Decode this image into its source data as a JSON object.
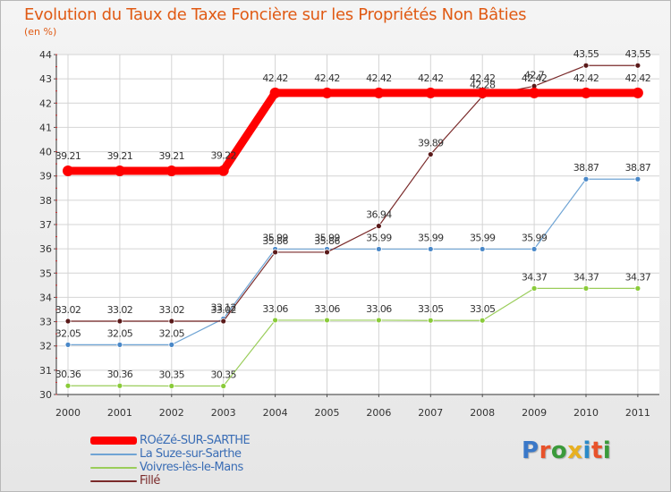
{
  "chart_data": {
    "type": "line",
    "title": "Evolution du Taux de Taxe Foncière sur les Propriétés Non Bâties",
    "ylabel": "(en %)",
    "xlabel": "",
    "categories": [
      "2000",
      "2001",
      "2002",
      "2003",
      "2004",
      "2005",
      "2006",
      "2007",
      "2008",
      "2009",
      "2010",
      "2011"
    ],
    "ylim": [
      30,
      44
    ],
    "yticks": [
      "30",
      "31",
      "32",
      "33",
      "34",
      "35",
      "36",
      "37",
      "38",
      "39",
      "40",
      "41",
      "42",
      "43",
      "44"
    ],
    "grid": true,
    "series": [
      {
        "name": "ROéZé-SUR-SARTHE",
        "color": "#ff0000",
        "values": [
          39.21,
          39.21,
          39.21,
          39.22,
          42.42,
          42.42,
          42.42,
          42.42,
          42.42,
          42.42,
          42.42,
          42.42
        ],
        "labels": [
          "39.21",
          "39.21",
          "39.21",
          "39.22",
          "42.42",
          "42.42",
          "42.42",
          "42.42",
          "42.42",
          "42.42",
          "42.42",
          "42.42"
        ]
      },
      {
        "name": "La Suze-sur-Sarthe",
        "color": "#6fa4d4",
        "values": [
          32.05,
          32.05,
          32.05,
          33.12,
          35.99,
          35.99,
          35.99,
          35.99,
          35.99,
          35.99,
          38.87,
          38.87
        ],
        "labels": [
          "32.05",
          "32.05",
          "32.05",
          "33.12",
          "35.99",
          "35.99",
          "35.99",
          "35.99",
          "35.99",
          "35.99",
          "38.87",
          "38.87"
        ]
      },
      {
        "name": "Voivres-lès-le-Mans",
        "color": "#9acd5a",
        "values": [
          30.36,
          30.36,
          30.35,
          30.35,
          33.06,
          33.06,
          33.06,
          33.05,
          33.05,
          34.37,
          34.37,
          34.37
        ],
        "labels": [
          "30.36",
          "30.36",
          "30.35",
          "30.35",
          "33.06",
          "33.06",
          "33.06",
          "33.05",
          "33.05",
          "34.37",
          "34.37",
          "34.37"
        ]
      },
      {
        "name": "Fillé",
        "color": "#7a2a2a",
        "values": [
          33.02,
          33.02,
          33.02,
          33.02,
          35.86,
          35.86,
          36.94,
          39.89,
          42.28,
          42.7,
          43.55,
          43.55
        ],
        "labels": [
          "33.02",
          "33.02",
          "33.02",
          "33.02",
          "35.86",
          "35.86",
          "36.94",
          "39.89",
          "42.28",
          "42.7",
          "43.55",
          "43.55"
        ]
      }
    ]
  },
  "brand": {
    "letters": [
      "P",
      "r",
      "o",
      "x",
      "i",
      "t",
      "i"
    ],
    "colors": [
      "#3a78c8",
      "#e8522a",
      "#3a9a3a",
      "#e8b020",
      "#2a8ac8",
      "#e8522a",
      "#3a9a3a"
    ]
  }
}
